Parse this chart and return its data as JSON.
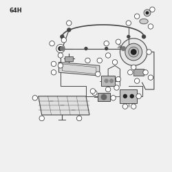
{
  "title": "64H",
  "bg_color": "#f0f0f0",
  "line_color": "#444444",
  "part_color": "#888888",
  "dark_color": "#222222",
  "light_color": "#cccccc",
  "title_fontsize": 6,
  "fig_width": 2.5,
  "fig_height": 2.5,
  "dpi": 100
}
